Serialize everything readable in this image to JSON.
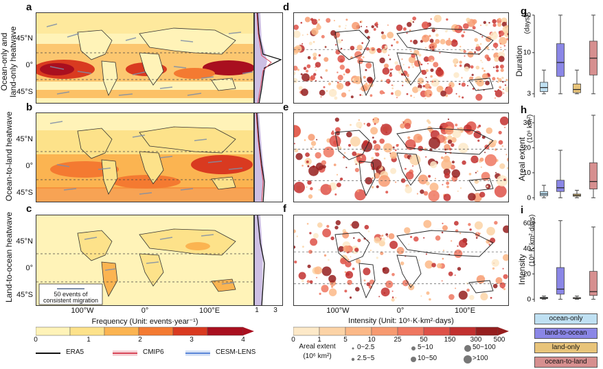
{
  "panels": {
    "a": "a",
    "b": "b",
    "c": "c",
    "d": "d",
    "e": "e",
    "f": "f",
    "g": "g",
    "h": "h",
    "i": "i"
  },
  "rows": {
    "row1_line1": "Ocean-only and",
    "row1_line2": "land-only heatwave",
    "row2": "Ocean-to-land heatwave",
    "row3": "Land-to-ocean heatwave"
  },
  "lat_labels": [
    "45°N",
    "0°",
    "45°S"
  ],
  "lon_labels": [
    "100°W",
    "0°",
    "100°E"
  ],
  "profile_ticks": [
    "1",
    "3"
  ],
  "migration_legend": {
    "line1": "50 events of",
    "line2": "consistent migration"
  },
  "freq_colorbar": {
    "title": "Frequency (Unit: events·year⁻¹)",
    "ticks": [
      "0",
      "1",
      "2",
      "3",
      "4"
    ],
    "colors": [
      "#fff3b8",
      "#fde28a",
      "#fbb451",
      "#f47a31",
      "#d93a20",
      "#a90f1f"
    ]
  },
  "intensity_colorbar": {
    "title": "Intensity (Unit: 10⁶·K·km²·days)",
    "ticks": [
      "0",
      "1",
      "5",
      "10",
      "25",
      "50",
      "150",
      "300",
      "500"
    ],
    "colors": [
      "#fde9c8",
      "#fcd3a6",
      "#fbb887",
      "#f79a70",
      "#ef7760",
      "#de5148",
      "#c2302f",
      "#951e1e"
    ]
  },
  "areal_legend": {
    "title_line1": "Areal extent",
    "title_line2": "(10⁶ km²)",
    "items": [
      "0~2.5",
      "2.5~5",
      "5~10",
      "10~50",
      "50~100",
      ">100"
    ]
  },
  "line_legend": [
    {
      "label": "ERA5",
      "color": "#111111"
    },
    {
      "label": "CMIP6",
      "color": "#d9485a"
    },
    {
      "label": "CESM-LENS",
      "color": "#5b86d8"
    }
  ],
  "box_legend": [
    {
      "label": "ocean-only",
      "color": "#bfe0f2"
    },
    {
      "label": "land-to-ocean",
      "color": "#8a86e6"
    },
    {
      "label": "land-only",
      "color": "#e8c47a"
    },
    {
      "label": "ocean-to-land",
      "color": "#d68f8f"
    }
  ],
  "chart_data": [
    {
      "type": "box",
      "panel": "g",
      "ylabel": "Duration",
      "unit": "(days)",
      "y_ticks": [
        "3",
        "10",
        "30"
      ],
      "y_scale": "log",
      "ylim": [
        2.7,
        30
      ],
      "series": [
        {
          "name": "ocean-only",
          "min": 3,
          "q1": 3.2,
          "median": 3.6,
          "q3": 4.2,
          "max": 6
        },
        {
          "name": "land-to-ocean",
          "min": 3,
          "q1": 5,
          "median": 7.5,
          "q3": 13,
          "max": 30
        },
        {
          "name": "land-only",
          "min": 3,
          "q1": 3.1,
          "median": 3.4,
          "q3": 4,
          "max": 6
        },
        {
          "name": "ocean-to-land",
          "min": 3,
          "q1": 5.2,
          "median": 8.5,
          "q3": 14,
          "max": 30
        }
      ]
    },
    {
      "type": "box",
      "panel": "h",
      "ylabel": "Areal extent",
      "unit": "(10⁶ km²)",
      "y_ticks": [
        "0",
        "10",
        "20",
        "30"
      ],
      "ylim": [
        -1,
        33
      ],
      "series": [
        {
          "name": "ocean-only",
          "min": 0,
          "q1": 0.8,
          "median": 1.5,
          "q3": 2.5,
          "max": 5
        },
        {
          "name": "land-to-ocean",
          "min": 0,
          "q1": 2.5,
          "median": 4,
          "q3": 7,
          "max": 19
        },
        {
          "name": "land-only",
          "min": 0,
          "q1": 0.6,
          "median": 1,
          "q3": 1.5,
          "max": 3
        },
        {
          "name": "ocean-to-land",
          "min": 0,
          "q1": 3.5,
          "median": 6.5,
          "q3": 14,
          "max": 33
        }
      ]
    },
    {
      "type": "box",
      "panel": "i",
      "ylabel": "Intensity",
      "unit": "(10⁶ K·km²·days)",
      "y_ticks": [
        "0",
        "20",
        "40",
        "60"
      ],
      "ylim": [
        -2,
        64
      ],
      "series": [
        {
          "name": "ocean-only",
          "min": 0,
          "q1": 0.5,
          "median": 1,
          "q3": 1.5,
          "max": 2.5
        },
        {
          "name": "land-to-ocean",
          "min": 0,
          "q1": 4,
          "median": 8,
          "q3": 25,
          "max": 62
        },
        {
          "name": "land-only",
          "min": 0,
          "q1": 0.5,
          "median": 0.8,
          "q3": 1.3,
          "max": 2.5
        },
        {
          "name": "ocean-to-land",
          "min": 0,
          "q1": 3,
          "median": 6,
          "q3": 22,
          "max": 57
        }
      ]
    }
  ]
}
